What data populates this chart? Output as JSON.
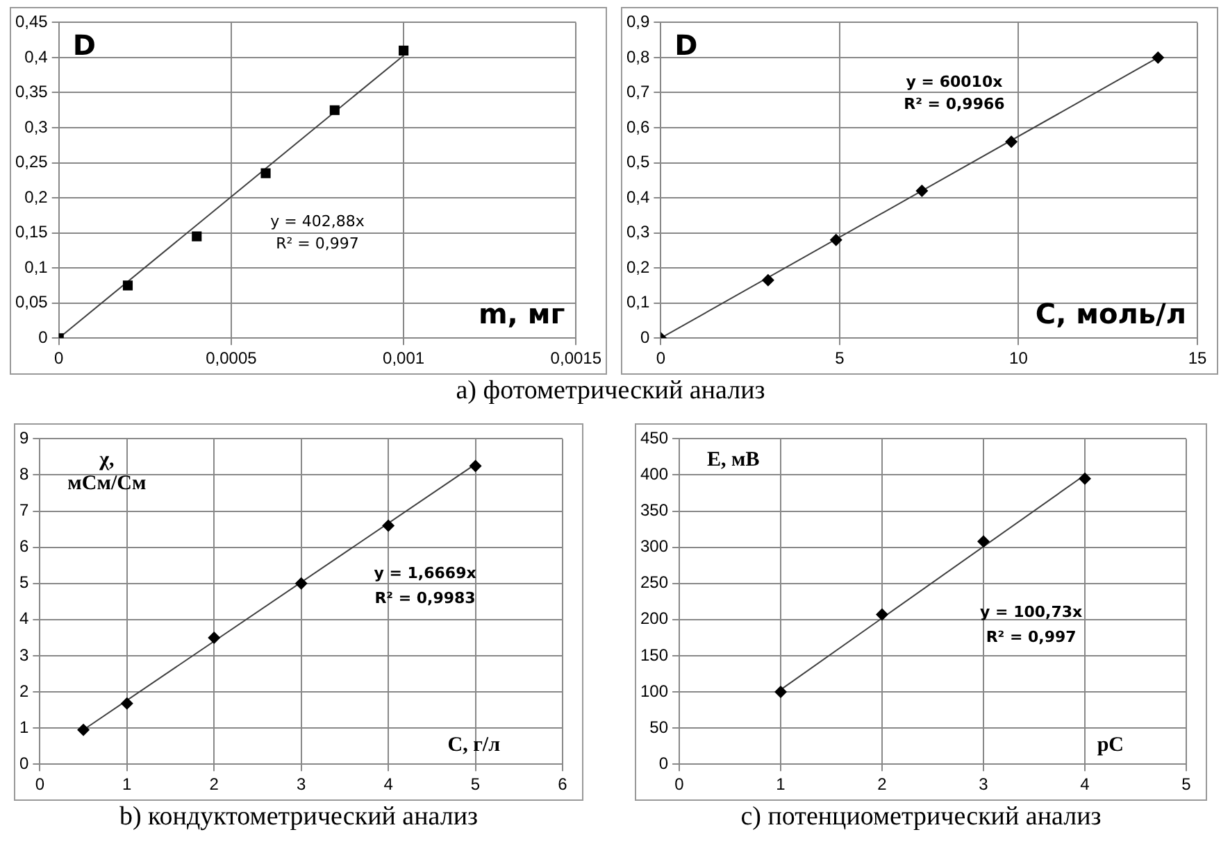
{
  "chart_data": [
    {
      "type": "scatter",
      "title": "a) фотометрический анализ",
      "xlabel": "m, мг",
      "ylabel": "D",
      "marker": "square",
      "grid": true,
      "legend": false,
      "xlim": [
        0,
        0.0015
      ],
      "xticks": [
        0,
        {
          "value": 0.0005,
          "label": "0,0005"
        },
        {
          "value": 0.001,
          "label": "0,001"
        },
        {
          "value": 0.0015,
          "label": "0,0015"
        }
      ],
      "ylim": [
        0,
        0.45
      ],
      "yticks": [
        0,
        {
          "value": 0.05,
          "label": "0,05"
        },
        {
          "value": 0.1,
          "label": "0,1"
        },
        {
          "value": 0.15,
          "label": "0,15"
        },
        {
          "value": 0.2,
          "label": "0,2"
        },
        {
          "value": 0.25,
          "label": "0,25"
        },
        {
          "value": 0.3,
          "label": "0,3"
        },
        {
          "value": 0.35,
          "label": "0,35"
        },
        {
          "value": 0.4,
          "label": "0,4"
        },
        {
          "value": 0.45,
          "label": "0,45"
        }
      ],
      "annotations": [
        "y = 402,88x",
        "R² = 0,997"
      ],
      "series": [
        {
          "color": "#000000",
          "x": [
            0,
            0.0002,
            0.0004,
            0.0006,
            0.0008,
            0.001
          ],
          "values": [
            0,
            0.075,
            0.145,
            0.235,
            0.325,
            0.41
          ]
        },
        {
          "type": "line",
          "marker": "none",
          "color": "#404040",
          "x": [
            0,
            0.001
          ],
          "values": [
            0,
            0.403
          ]
        }
      ]
    },
    {
      "type": "scatter",
      "xlabel": "C, моль/л",
      "ylabel": "D",
      "marker": "diamond",
      "grid": true,
      "legend": false,
      "xlim": [
        0,
        15
      ],
      "xticks": [
        0,
        5,
        10,
        15
      ],
      "ylim": [
        0,
        0.9
      ],
      "yticks": [
        0,
        {
          "value": 0.1,
          "label": "0,1"
        },
        {
          "value": 0.2,
          "label": "0,2"
        },
        {
          "value": 0.3,
          "label": "0,3"
        },
        {
          "value": 0.4,
          "label": "0,4"
        },
        {
          "value": 0.5,
          "label": "0,5"
        },
        {
          "value": 0.6,
          "label": "0,6"
        },
        {
          "value": 0.7,
          "label": "0,7"
        },
        {
          "value": 0.8,
          "label": "0,8"
        },
        {
          "value": 0.9,
          "label": "0,9"
        }
      ],
      "annotations": [
        "y = 60010x",
        "R² = 0,9966"
      ],
      "series": [
        {
          "color": "#000000",
          "x": [
            0,
            3,
            4.9,
            7.3,
            9.8,
            13.9
          ],
          "values": [
            0,
            0.165,
            0.28,
            0.42,
            0.56,
            0.8
          ]
        },
        {
          "type": "line",
          "marker": "none",
          "color": "#404040",
          "x": [
            0,
            13.9
          ],
          "values": [
            0,
            0.8
          ]
        }
      ]
    },
    {
      "type": "scatter",
      "title": "b) кондуктометрический анализ",
      "xlabel": "C, г/л",
      "ylabel": "χ,\nмСм/См",
      "marker": "diamond",
      "grid": true,
      "legend": false,
      "xlim": [
        0,
        6
      ],
      "xticks": [
        0,
        1,
        2,
        3,
        4,
        5,
        6
      ],
      "ylim": [
        0,
        9
      ],
      "yticks": [
        0,
        1,
        2,
        3,
        4,
        5,
        6,
        7,
        8,
        9
      ],
      "annotations": [
        "y = 1,6669x",
        "R² = 0,9983"
      ],
      "series": [
        {
          "color": "#000000",
          "x": [
            0.5,
            1,
            2,
            3,
            4,
            5
          ],
          "values": [
            0.95,
            1.68,
            3.5,
            5,
            6.6,
            8.25
          ]
        },
        {
          "type": "line",
          "marker": "none",
          "color": "#404040",
          "x": [
            0.5,
            5
          ],
          "values": [
            0.95,
            8.3
          ]
        }
      ]
    },
    {
      "type": "scatter",
      "title": "c) потенциометрический анализ",
      "xlabel": "pC",
      "ylabel": "E, мВ",
      "marker": "diamond",
      "grid": true,
      "legend": false,
      "xlim": [
        0,
        5
      ],
      "xticks": [
        0,
        1,
        2,
        3,
        4,
        5
      ],
      "ylim": [
        0,
        450
      ],
      "yticks": [
        0,
        50,
        100,
        150,
        200,
        250,
        300,
        350,
        400,
        450
      ],
      "annotations": [
        "y = 100,73x",
        "R² = 0,997"
      ],
      "series": [
        {
          "color": "#000000",
          "x": [
            1,
            2,
            3,
            4
          ],
          "values": [
            100,
            207,
            308,
            395
          ]
        },
        {
          "type": "line",
          "marker": "none",
          "color": "#404040",
          "x": [
            1,
            4
          ],
          "values": [
            103,
            400
          ]
        }
      ]
    }
  ]
}
